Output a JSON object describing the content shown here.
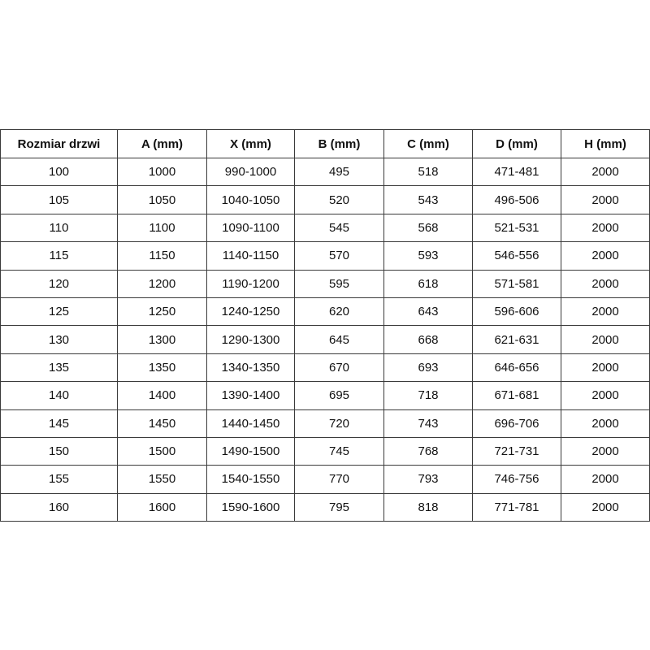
{
  "table": {
    "header": [
      "Rozmiar drzwi",
      "A (mm)",
      "X (mm)",
      "B (mm)",
      "C (mm)",
      "D (mm)",
      "H (mm)"
    ],
    "rows": [
      [
        "100",
        "1000",
        "990-1000",
        "495",
        "518",
        "471-481",
        "2000"
      ],
      [
        "105",
        "1050",
        "1040-1050",
        "520",
        "543",
        "496-506",
        "2000"
      ],
      [
        "110",
        "1100",
        "1090-1100",
        "545",
        "568",
        "521-531",
        "2000"
      ],
      [
        "115",
        "1150",
        "1140-1150",
        "570",
        "593",
        "546-556",
        "2000"
      ],
      [
        "120",
        "1200",
        "1190-1200",
        "595",
        "618",
        "571-581",
        "2000"
      ],
      [
        "125",
        "1250",
        "1240-1250",
        "620",
        "643",
        "596-606",
        "2000"
      ],
      [
        "130",
        "1300",
        "1290-1300",
        "645",
        "668",
        "621-631",
        "2000"
      ],
      [
        "135",
        "1350",
        "1340-1350",
        "670",
        "693",
        "646-656",
        "2000"
      ],
      [
        "140",
        "1400",
        "1390-1400",
        "695",
        "718",
        "671-681",
        "2000"
      ],
      [
        "145",
        "1450",
        "1440-1450",
        "720",
        "743",
        "696-706",
        "2000"
      ],
      [
        "150",
        "1500",
        "1490-1500",
        "745",
        "768",
        "721-731",
        "2000"
      ],
      [
        "155",
        "1550",
        "1540-1550",
        "770",
        "793",
        "746-756",
        "2000"
      ],
      [
        "160",
        "1600",
        "1590-1600",
        "795",
        "818",
        "771-781",
        "2000"
      ]
    ]
  }
}
